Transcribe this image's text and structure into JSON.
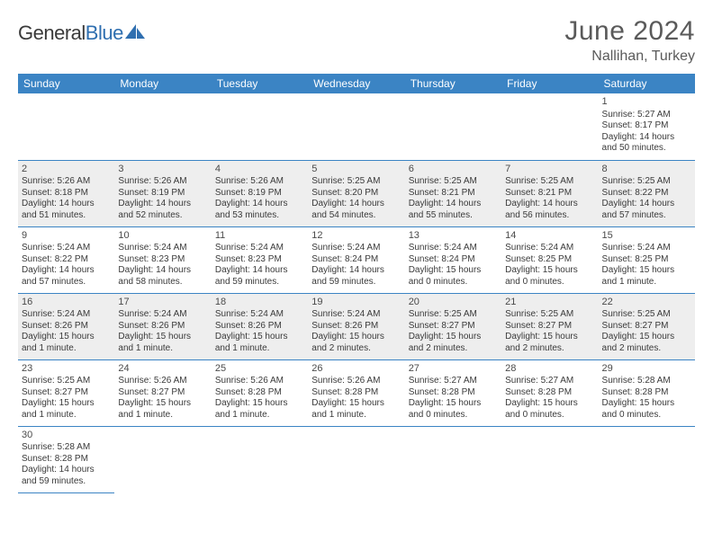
{
  "logo": {
    "text1": "General",
    "text2": "Blue",
    "color1": "#3a3a3a",
    "color2": "#2f6fb0",
    "icon_color": "#2f6fb0"
  },
  "title": "June 2024",
  "subtitle": "Nallihan, Turkey",
  "colors": {
    "header_bg": "#3b84c4",
    "header_text": "#ffffff",
    "shaded_row": "#eeeeee",
    "border": "#3b84c4",
    "body_text": "#3a3a3a",
    "title_text": "#5a5a5a"
  },
  "weekdays": [
    "Sunday",
    "Monday",
    "Tuesday",
    "Wednesday",
    "Thursday",
    "Friday",
    "Saturday"
  ],
  "weeks": [
    [
      null,
      null,
      null,
      null,
      null,
      null,
      {
        "n": "1",
        "sr": "Sunrise: 5:27 AM",
        "ss": "Sunset: 8:17 PM",
        "dl": "Daylight: 14 hours and 50 minutes."
      }
    ],
    [
      {
        "n": "2",
        "sr": "Sunrise: 5:26 AM",
        "ss": "Sunset: 8:18 PM",
        "dl": "Daylight: 14 hours and 51 minutes."
      },
      {
        "n": "3",
        "sr": "Sunrise: 5:26 AM",
        "ss": "Sunset: 8:19 PM",
        "dl": "Daylight: 14 hours and 52 minutes."
      },
      {
        "n": "4",
        "sr": "Sunrise: 5:26 AM",
        "ss": "Sunset: 8:19 PM",
        "dl": "Daylight: 14 hours and 53 minutes."
      },
      {
        "n": "5",
        "sr": "Sunrise: 5:25 AM",
        "ss": "Sunset: 8:20 PM",
        "dl": "Daylight: 14 hours and 54 minutes."
      },
      {
        "n": "6",
        "sr": "Sunrise: 5:25 AM",
        "ss": "Sunset: 8:21 PM",
        "dl": "Daylight: 14 hours and 55 minutes."
      },
      {
        "n": "7",
        "sr": "Sunrise: 5:25 AM",
        "ss": "Sunset: 8:21 PM",
        "dl": "Daylight: 14 hours and 56 minutes."
      },
      {
        "n": "8",
        "sr": "Sunrise: 5:25 AM",
        "ss": "Sunset: 8:22 PM",
        "dl": "Daylight: 14 hours and 57 minutes."
      }
    ],
    [
      {
        "n": "9",
        "sr": "Sunrise: 5:24 AM",
        "ss": "Sunset: 8:22 PM",
        "dl": "Daylight: 14 hours and 57 minutes."
      },
      {
        "n": "10",
        "sr": "Sunrise: 5:24 AM",
        "ss": "Sunset: 8:23 PM",
        "dl": "Daylight: 14 hours and 58 minutes."
      },
      {
        "n": "11",
        "sr": "Sunrise: 5:24 AM",
        "ss": "Sunset: 8:23 PM",
        "dl": "Daylight: 14 hours and 59 minutes."
      },
      {
        "n": "12",
        "sr": "Sunrise: 5:24 AM",
        "ss": "Sunset: 8:24 PM",
        "dl": "Daylight: 14 hours and 59 minutes."
      },
      {
        "n": "13",
        "sr": "Sunrise: 5:24 AM",
        "ss": "Sunset: 8:24 PM",
        "dl": "Daylight: 15 hours and 0 minutes."
      },
      {
        "n": "14",
        "sr": "Sunrise: 5:24 AM",
        "ss": "Sunset: 8:25 PM",
        "dl": "Daylight: 15 hours and 0 minutes."
      },
      {
        "n": "15",
        "sr": "Sunrise: 5:24 AM",
        "ss": "Sunset: 8:25 PM",
        "dl": "Daylight: 15 hours and 1 minute."
      }
    ],
    [
      {
        "n": "16",
        "sr": "Sunrise: 5:24 AM",
        "ss": "Sunset: 8:26 PM",
        "dl": "Daylight: 15 hours and 1 minute."
      },
      {
        "n": "17",
        "sr": "Sunrise: 5:24 AM",
        "ss": "Sunset: 8:26 PM",
        "dl": "Daylight: 15 hours and 1 minute."
      },
      {
        "n": "18",
        "sr": "Sunrise: 5:24 AM",
        "ss": "Sunset: 8:26 PM",
        "dl": "Daylight: 15 hours and 1 minute."
      },
      {
        "n": "19",
        "sr": "Sunrise: 5:24 AM",
        "ss": "Sunset: 8:26 PM",
        "dl": "Daylight: 15 hours and 2 minutes."
      },
      {
        "n": "20",
        "sr": "Sunrise: 5:25 AM",
        "ss": "Sunset: 8:27 PM",
        "dl": "Daylight: 15 hours and 2 minutes."
      },
      {
        "n": "21",
        "sr": "Sunrise: 5:25 AM",
        "ss": "Sunset: 8:27 PM",
        "dl": "Daylight: 15 hours and 2 minutes."
      },
      {
        "n": "22",
        "sr": "Sunrise: 5:25 AM",
        "ss": "Sunset: 8:27 PM",
        "dl": "Daylight: 15 hours and 2 minutes."
      }
    ],
    [
      {
        "n": "23",
        "sr": "Sunrise: 5:25 AM",
        "ss": "Sunset: 8:27 PM",
        "dl": "Daylight: 15 hours and 1 minute."
      },
      {
        "n": "24",
        "sr": "Sunrise: 5:26 AM",
        "ss": "Sunset: 8:27 PM",
        "dl": "Daylight: 15 hours and 1 minute."
      },
      {
        "n": "25",
        "sr": "Sunrise: 5:26 AM",
        "ss": "Sunset: 8:28 PM",
        "dl": "Daylight: 15 hours and 1 minute."
      },
      {
        "n": "26",
        "sr": "Sunrise: 5:26 AM",
        "ss": "Sunset: 8:28 PM",
        "dl": "Daylight: 15 hours and 1 minute."
      },
      {
        "n": "27",
        "sr": "Sunrise: 5:27 AM",
        "ss": "Sunset: 8:28 PM",
        "dl": "Daylight: 15 hours and 0 minutes."
      },
      {
        "n": "28",
        "sr": "Sunrise: 5:27 AM",
        "ss": "Sunset: 8:28 PM",
        "dl": "Daylight: 15 hours and 0 minutes."
      },
      {
        "n": "29",
        "sr": "Sunrise: 5:28 AM",
        "ss": "Sunset: 8:28 PM",
        "dl": "Daylight: 15 hours and 0 minutes."
      }
    ],
    [
      {
        "n": "30",
        "sr": "Sunrise: 5:28 AM",
        "ss": "Sunset: 8:28 PM",
        "dl": "Daylight: 14 hours and 59 minutes."
      },
      null,
      null,
      null,
      null,
      null,
      null
    ]
  ],
  "shaded_weeks": [
    1,
    3
  ]
}
